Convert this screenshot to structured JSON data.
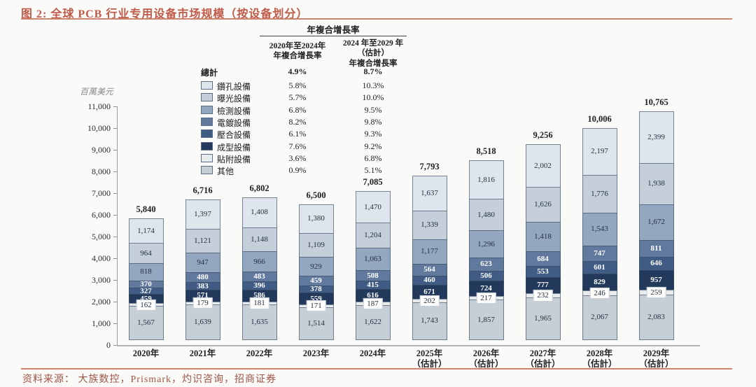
{
  "title": "图 2: 全球 PCB 行业专用设备市场规模（按设备划分）",
  "source": "资料来源： 大族数控，Prismark，灼识咨询，招商证券",
  "unit_label": "百萬美元",
  "cagr_table": {
    "header": "年複合增長率",
    "col1_header": "2020年至2024年\n年複合增長率",
    "col2_header": "2024 年至2029 年\n（估計）\n年複合增長率",
    "total_label": "總計",
    "total_cagr_2020_2024": "4.9%",
    "total_cagr_2024_2029": "8.7%"
  },
  "chart_data": {
    "type": "bar",
    "stacked": true,
    "title": "全球 PCB 行业专用设备市场规模（按设备划分）",
    "ylabel": "百萬美元",
    "ylim": [
      0,
      11000
    ],
    "ytick_step": 1000,
    "grid": false,
    "legend_position": "upper-left",
    "categories": [
      "2020年",
      "2021年",
      "2022年",
      "2023年",
      "2024年",
      "2025年",
      "2026年",
      "2027年",
      "2028年",
      "2029年"
    ],
    "category_sublabels": [
      "",
      "",
      "",
      "",
      "",
      "（估計）",
      "（估計）",
      "（估計）",
      "（估計）",
      "（估計）"
    ],
    "totals": [
      5840,
      6716,
      6802,
      6500,
      7085,
      7793,
      8518,
      9256,
      10006,
      10765
    ],
    "series": [
      {
        "id": "drilling-equipment",
        "name": "鑽孔設備",
        "color": "#dfe5ec",
        "label_style": "dark",
        "cagr_2020_2024": "5.8%",
        "cagr_2024_2029": "10.3%",
        "values": [
          1174,
          1397,
          1408,
          1380,
          1470,
          1637,
          1816,
          2002,
          2197,
          2399
        ]
      },
      {
        "id": "exposure-equipment",
        "name": "曝光設備",
        "color": "#c4cfda",
        "label_style": "dark",
        "cagr_2020_2024": "5.7%",
        "cagr_2024_2029": "10.0%",
        "values": [
          964,
          1121,
          1148,
          1109,
          1204,
          1339,
          1480,
          1626,
          1776,
          1938
        ]
      },
      {
        "id": "inspection-equipment",
        "name": "檢測設備",
        "color": "#93a8c0",
        "label_style": "dark",
        "cagr_2020_2024": "6.8%",
        "cagr_2024_2029": "9.5%",
        "values": [
          818,
          947,
          966,
          929,
          1063,
          1177,
          1296,
          1418,
          1543,
          1672
        ]
      },
      {
        "id": "plating-equipment",
        "name": "電鍍設備",
        "color": "#60799c",
        "label_style": "white",
        "cagr_2020_2024": "8.2%",
        "cagr_2024_2029": "9.8%",
        "values": [
          370,
          480,
          483,
          459,
          508,
          564,
          623,
          684,
          747,
          811
        ]
      },
      {
        "id": "lamination-equipment",
        "name": "壓合設備",
        "color": "#405c84",
        "label_style": "white",
        "cagr_2020_2024": "6.1%",
        "cagr_2024_2029": "9.3%",
        "values": [
          327,
          383,
          396,
          378,
          415,
          460,
          506,
          553,
          601,
          646
        ]
      },
      {
        "id": "forming-equipment",
        "name": "成型設備",
        "color": "#22395c",
        "label_style": "white",
        "cagr_2020_2024": "7.6%",
        "cagr_2024_2029": "9.2%",
        "values": [
          459,
          571,
          586,
          559,
          616,
          671,
          724,
          777,
          829,
          957
        ]
      },
      {
        "id": "attachment-equipment",
        "name": "貼附設備",
        "color": "#e9eced",
        "label_style": "callout",
        "cagr_2020_2024": "3.6%",
        "cagr_2024_2029": "6.8%",
        "values": [
          162,
          179,
          181,
          171,
          187,
          202,
          217,
          232,
          246,
          259
        ]
      },
      {
        "id": "others",
        "name": "其他",
        "color": "#c6cfd6",
        "label_style": "dark",
        "cagr_2020_2024": "0.9%",
        "cagr_2024_2029": "5.1%",
        "values": [
          1567,
          1639,
          1635,
          1514,
          1622,
          1743,
          1857,
          1965,
          2067,
          2083
        ]
      }
    ]
  }
}
